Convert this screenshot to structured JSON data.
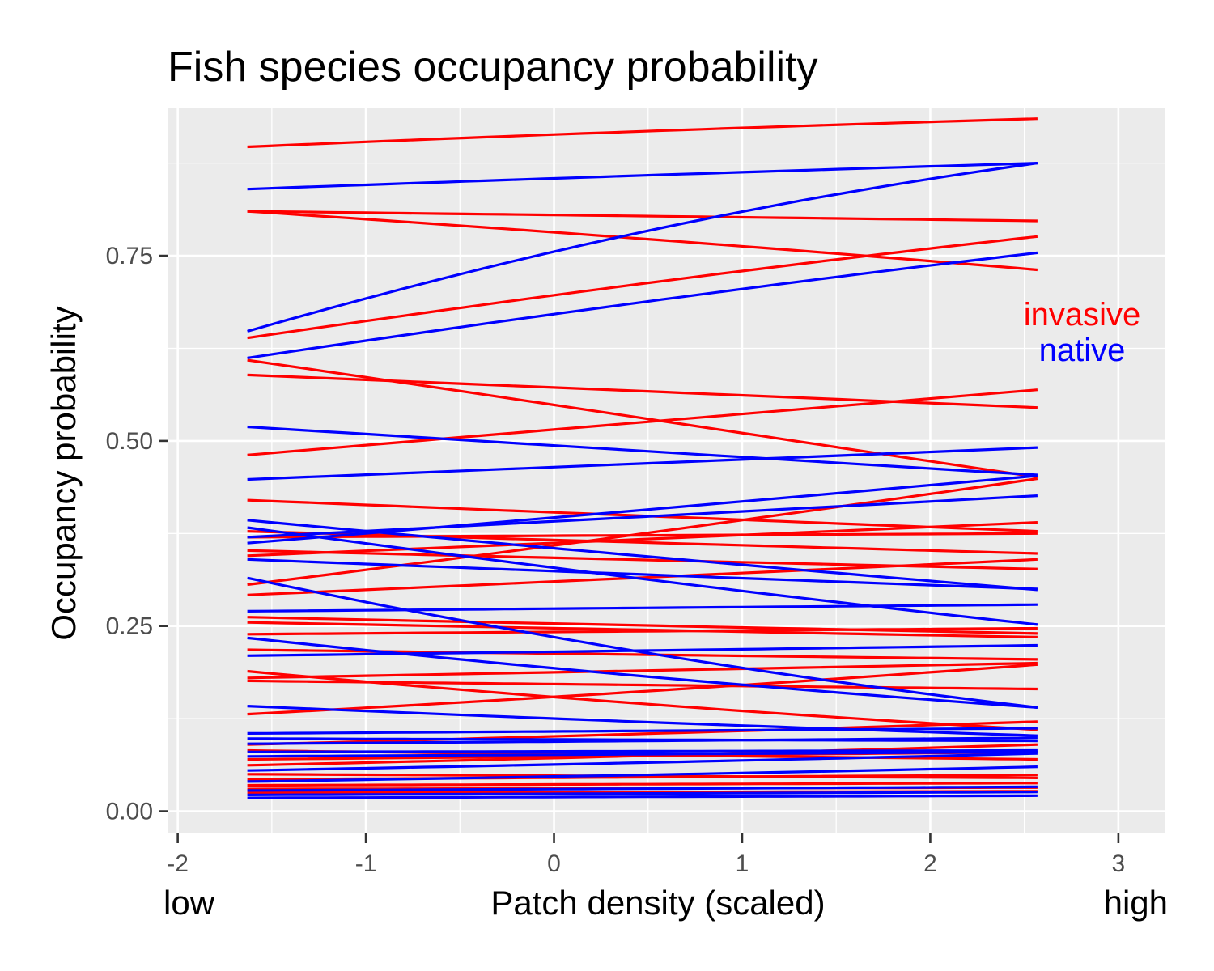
{
  "chart_data": {
    "type": "line",
    "title": "Fish species occupancy probability",
    "xlabel": "Patch density (scaled)",
    "ylabel": "Occupancy probability",
    "x_end_labels": {
      "low": "low",
      "high": "high"
    },
    "xlim": [
      -2.05,
      3.25
    ],
    "ylim": [
      -0.03,
      0.95
    ],
    "x_ticks": [
      -2,
      -1,
      0,
      1,
      2,
      3
    ],
    "x_tick_labels": [
      "-2",
      "-1",
      "0",
      "1",
      "2",
      "3"
    ],
    "y_ticks": [
      0,
      0.25,
      0.5,
      0.75
    ],
    "y_tick_labels": [
      "0.00",
      "0.25",
      "0.50",
      "0.75"
    ],
    "grid": true,
    "legend": {
      "placement": "right",
      "entries": [
        {
          "label": "invasive",
          "color": "#ff0000"
        },
        {
          "label": "native",
          "color": "#0000ff"
        }
      ]
    },
    "colors": {
      "invasive": "#ff0000",
      "native": "#0000ff",
      "panel": "#ebebeb",
      "grid": "#ffffff"
    },
    "x_range": [
      -1.63,
      2.57
    ],
    "series": [
      {
        "group": "invasive",
        "values": [
          0.897,
          0.935
        ]
      },
      {
        "group": "invasive",
        "values": [
          0.81,
          0.797
        ]
      },
      {
        "group": "invasive",
        "values": [
          0.81,
          0.731
        ]
      },
      {
        "group": "invasive",
        "values": [
          0.639,
          0.776
        ]
      },
      {
        "group": "invasive",
        "values": [
          0.609,
          0.451
        ]
      },
      {
        "group": "invasive",
        "values": [
          0.589,
          0.545
        ]
      },
      {
        "group": "invasive",
        "values": [
          0.481,
          0.569
        ]
      },
      {
        "group": "invasive",
        "values": [
          0.42,
          0.378
        ]
      },
      {
        "group": "invasive",
        "values": [
          0.378,
          0.348
        ]
      },
      {
        "group": "invasive",
        "values": [
          0.37,
          0.375
        ]
      },
      {
        "group": "invasive",
        "values": [
          0.352,
          0.327
        ]
      },
      {
        "group": "invasive",
        "values": [
          0.345,
          0.39
        ]
      },
      {
        "group": "invasive",
        "values": [
          0.306,
          0.449
        ]
      },
      {
        "group": "invasive",
        "values": [
          0.292,
          0.34
        ]
      },
      {
        "group": "invasive",
        "values": [
          0.262,
          0.24
        ]
      },
      {
        "group": "invasive",
        "values": [
          0.255,
          0.235
        ]
      },
      {
        "group": "invasive",
        "values": [
          0.239,
          0.247
        ]
      },
      {
        "group": "invasive",
        "values": [
          0.218,
          0.205
        ]
      },
      {
        "group": "invasive",
        "values": [
          0.189,
          0.11
        ]
      },
      {
        "group": "invasive",
        "values": [
          0.18,
          0.2
        ]
      },
      {
        "group": "invasive",
        "values": [
          0.176,
          0.165
        ]
      },
      {
        "group": "invasive",
        "values": [
          0.131,
          0.198
        ]
      },
      {
        "group": "invasive",
        "values": [
          0.09,
          0.121
        ]
      },
      {
        "group": "invasive",
        "values": [
          0.082,
          0.07
        ]
      },
      {
        "group": "invasive",
        "values": [
          0.07,
          0.08
        ]
      },
      {
        "group": "invasive",
        "values": [
          0.062,
          0.09
        ]
      },
      {
        "group": "invasive",
        "values": [
          0.05,
          0.045
        ]
      },
      {
        "group": "invasive",
        "values": [
          0.043,
          0.049
        ]
      },
      {
        "group": "invasive",
        "values": [
          0.035,
          0.038
        ]
      },
      {
        "group": "invasive",
        "values": [
          0.03,
          0.032
        ]
      },
      {
        "group": "invasive",
        "values": [
          0.025,
          0.027
        ]
      },
      {
        "group": "native",
        "values": [
          0.84,
          0.875
        ]
      },
      {
        "group": "native",
        "values": [
          0.648,
          0.875
        ]
      },
      {
        "group": "native",
        "values": [
          0.612,
          0.754
        ]
      },
      {
        "group": "native",
        "values": [
          0.519,
          0.454
        ]
      },
      {
        "group": "native",
        "values": [
          0.448,
          0.491
        ]
      },
      {
        "group": "native",
        "values": [
          0.393,
          0.299
        ]
      },
      {
        "group": "native",
        "values": [
          0.383,
          0.252
        ]
      },
      {
        "group": "native",
        "values": [
          0.37,
          0.426
        ]
      },
      {
        "group": "native",
        "values": [
          0.362,
          0.453
        ]
      },
      {
        "group": "native",
        "values": [
          0.34,
          0.3
        ]
      },
      {
        "group": "native",
        "values": [
          0.315,
          0.14
        ]
      },
      {
        "group": "native",
        "values": [
          0.27,
          0.279
        ]
      },
      {
        "group": "native",
        "values": [
          0.234,
          0.14
        ]
      },
      {
        "group": "native",
        "values": [
          0.21,
          0.224
        ]
      },
      {
        "group": "native",
        "values": [
          0.142,
          0.102
        ]
      },
      {
        "group": "native",
        "values": [
          0.105,
          0.112
        ]
      },
      {
        "group": "native",
        "values": [
          0.098,
          0.095
        ]
      },
      {
        "group": "native",
        "values": [
          0.091,
          0.099
        ]
      },
      {
        "group": "native",
        "values": [
          0.08,
          0.082
        ]
      },
      {
        "group": "native",
        "values": [
          0.074,
          0.08
        ]
      },
      {
        "group": "native",
        "values": [
          0.055,
          0.078
        ]
      },
      {
        "group": "native",
        "values": [
          0.04,
          0.06
        ]
      },
      {
        "group": "native",
        "values": [
          0.028,
          0.033
        ]
      },
      {
        "group": "native",
        "values": [
          0.022,
          0.026
        ]
      },
      {
        "group": "native",
        "values": [
          0.018,
          0.021
        ]
      }
    ]
  }
}
